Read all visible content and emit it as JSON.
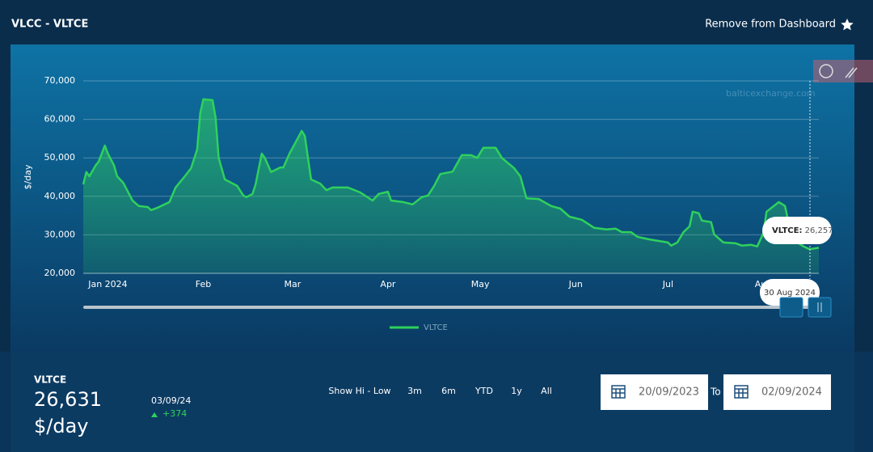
{
  "header": {
    "title": "VLCC - VLTCE",
    "action": "Remove from Dashboard"
  },
  "chart_data": {
    "type": "area",
    "y_label": "$/day",
    "x": [
      "2024-01-07",
      "2024-01-08",
      "2024-01-09",
      "2024-01-11",
      "2024-01-12",
      "2024-01-14",
      "2024-01-15",
      "2024-01-17",
      "2024-01-18",
      "2024-01-20",
      "2024-01-21",
      "2024-01-23",
      "2024-01-25",
      "2024-01-28",
      "2024-01-29",
      "2024-01-31",
      "2024-02-04",
      "2024-02-06",
      "2024-02-09",
      "2024-02-11",
      "2024-02-13",
      "2024-02-14",
      "2024-02-15",
      "2024-02-18",
      "2024-02-19",
      "2024-02-20",
      "2024-02-22",
      "2024-02-26",
      "2024-02-28",
      "2024-02-29",
      "2024-03-02",
      "2024-03-03",
      "2024-03-05",
      "2024-03-06",
      "2024-03-08",
      "2024-03-11",
      "2024-03-12",
      "2024-03-14",
      "2024-03-18",
      "2024-03-19",
      "2024-03-21",
      "2024-03-24",
      "2024-03-26",
      "2024-03-28",
      "2024-04-02",
      "2024-04-06",
      "2024-04-10",
      "2024-04-12",
      "2024-04-15",
      "2024-04-16",
      "2024-04-20",
      "2024-04-23",
      "2024-04-26",
      "2024-04-28",
      "2024-04-30",
      "2024-05-02",
      "2024-05-06",
      "2024-05-09",
      "2024-05-12",
      "2024-05-14",
      "2024-05-16",
      "2024-05-20",
      "2024-05-22",
      "2024-05-26",
      "2024-05-28",
      "2024-05-30",
      "2024-06-03",
      "2024-06-07",
      "2024-06-10",
      "2024-06-13",
      "2024-06-17",
      "2024-06-21",
      "2024-06-25",
      "2024-06-28",
      "2024-06-30",
      "2024-07-03",
      "2024-07-05",
      "2024-07-09",
      "2024-07-12",
      "2024-07-15",
      "2024-07-16",
      "2024-07-18",
      "2024-07-20",
      "2024-07-22",
      "2024-07-23",
      "2024-07-25",
      "2024-07-26",
      "2024-07-29",
      "2024-07-30",
      "2024-08-02",
      "2024-08-06",
      "2024-08-08",
      "2024-08-11",
      "2024-08-13",
      "2024-08-15",
      "2024-08-16",
      "2024-08-20",
      "2024-08-22",
      "2024-08-24",
      "2024-08-26",
      "2024-08-28",
      "2024-08-30",
      "2024-09-02"
    ],
    "series": [
      {
        "name": "VLTCE",
        "color": "#2fd15c",
        "values": [
          43100,
          46300,
          45200,
          48000,
          49000,
          53200,
          51100,
          48000,
          45200,
          43500,
          42000,
          38900,
          37500,
          37200,
          36400,
          37000,
          38500,
          42300,
          45200,
          47300,
          52200,
          61600,
          65200,
          65000,
          60500,
          50000,
          44400,
          42700,
          40200,
          39800,
          40600,
          43100,
          51100,
          50000,
          46300,
          47500,
          47500,
          51100,
          57000,
          55700,
          44400,
          43300,
          41600,
          42300,
          42300,
          41000,
          38900,
          40600,
          41200,
          38900,
          38500,
          37900,
          39800,
          40200,
          42700,
          45800,
          46400,
          50700,
          50700,
          50000,
          52600,
          52600,
          50000,
          47300,
          45200,
          39500,
          39300,
          37500,
          36800,
          34700,
          33900,
          31800,
          31400,
          31600,
          30700,
          30700,
          29500,
          28800,
          28400,
          28000,
          27200,
          28000,
          30700,
          32200,
          36000,
          35600,
          33700,
          33300,
          30100,
          28000,
          27800,
          27200,
          27400,
          27000,
          30500,
          36000,
          38500,
          37500,
          30100,
          28000,
          27000,
          26257,
          26631
        ]
      }
    ],
    "xlim": [
      "2024-01-07",
      "2024-09-02"
    ],
    "xticks": [
      {
        "value": "2024-01-01",
        "label": "Jan 2024"
      },
      {
        "value": "2024-02-01",
        "label": "Feb"
      },
      {
        "value": "2024-03-01",
        "label": "Mar"
      },
      {
        "value": "2024-04-01",
        "label": "Apr"
      },
      {
        "value": "2024-05-01",
        "label": "May"
      },
      {
        "value": "2024-06-01",
        "label": "Jun"
      },
      {
        "value": "2024-07-01",
        "label": "Jul"
      },
      {
        "value": "2024-08-01",
        "label": "Aug"
      }
    ],
    "ylim": [
      20000,
      70000
    ],
    "yticks": [
      {
        "value": 20000,
        "label": "20,000"
      },
      {
        "value": 30000,
        "label": "30,000"
      },
      {
        "value": 40000,
        "label": "40,000"
      },
      {
        "value": 50000,
        "label": "50,000"
      },
      {
        "value": 60000,
        "label": "60,000"
      },
      {
        "value": 70000,
        "label": "70,000"
      }
    ],
    "grid": true,
    "legend": "bottom"
  },
  "watermark": "balticexchange.com",
  "tooltip": {
    "series_label": "VLTCE:",
    "value": "26,257",
    "date": "30 Aug 2024"
  },
  "summary": {
    "name": "VLTCE",
    "value": "26,631",
    "unit": "$/day",
    "date": "03/09/24",
    "change": "+374"
  },
  "range_buttons": [
    "Show Hi - Low",
    "3m",
    "6m",
    "YTD",
    "1y",
    "All"
  ],
  "date_range": {
    "from": "20/09/2023",
    "separator": "To",
    "to": "02/09/2024"
  }
}
